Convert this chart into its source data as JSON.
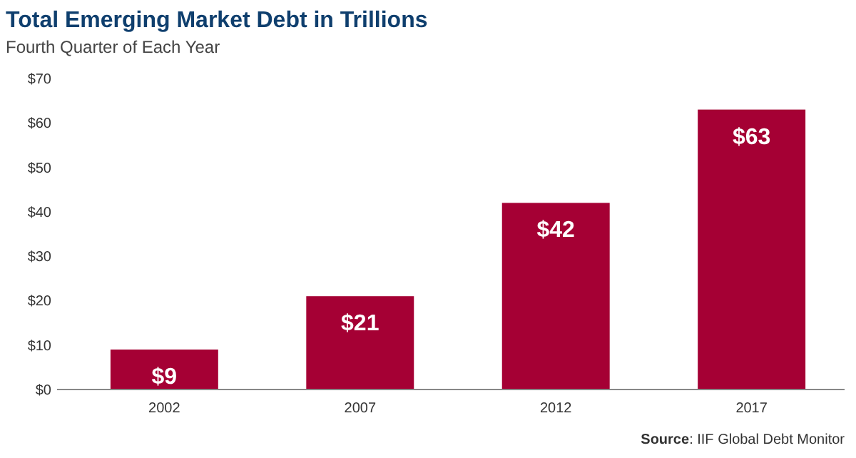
{
  "chart_data": {
    "type": "bar",
    "title": "Total Emerging Market Debt in Trillions",
    "subtitle": "Fourth Quarter of Each Year",
    "categories": [
      "2002",
      "2007",
      "2012",
      "2017"
    ],
    "values": [
      9,
      21,
      42,
      63
    ],
    "color": "#a50034",
    "value_labels": [
      "$9",
      "$21",
      "$42",
      "$63"
    ],
    "ylim": [
      0,
      70
    ],
    "yticks": [
      {
        "value": 0,
        "label": "$0"
      },
      {
        "value": 10,
        "label": "$10"
      },
      {
        "value": 20,
        "label": "$20"
      },
      {
        "value": 30,
        "label": "$30"
      },
      {
        "value": 40,
        "label": "$40"
      },
      {
        "value": 50,
        "label": "$50"
      },
      {
        "value": 60,
        "label": "$60"
      },
      {
        "value": 70,
        "label": "$70"
      }
    ],
    "grid": false,
    "annotations": [
      "Source: IIF Global Debt Monitor"
    ]
  }
}
